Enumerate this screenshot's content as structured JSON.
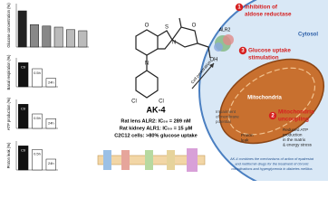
{
  "charts": [
    {
      "type": "bar",
      "y_label": "Glucose concentration (%)",
      "categories": [
        null,
        null,
        null,
        null,
        null,
        null
      ],
      "values": [
        100,
        62,
        58,
        55,
        48,
        45
      ],
      "colors": [
        "#222",
        "#888",
        "#888",
        "#bbb",
        "#bbb",
        "#bbb"
      ],
      "ylim": [
        0,
        120
      ]
    },
    {
      "type": "bar",
      "y_label": "Basal respiration (%)",
      "categories": [
        "Ctr",
        "0.5h",
        "24h"
      ],
      "values": [
        100,
        75,
        35
      ],
      "colors": [
        "#111",
        "#fff",
        "#fff"
      ],
      "ylim": [
        0,
        120
      ]
    },
    {
      "type": "bar",
      "y_label": "ATP production (%)",
      "categories": [
        "Ctr",
        "0.5h",
        "24h"
      ],
      "values": [
        100,
        60,
        40
      ],
      "colors": [
        "#111",
        "#fff",
        "#fff"
      ],
      "ylim": [
        0,
        120
      ]
    },
    {
      "type": "bar",
      "y_label": "Proton leak (%)",
      "categories": [
        "Ctr",
        "0.5h",
        "24h"
      ],
      "values": [
        100,
        85,
        45
      ],
      "colors": [
        "#111",
        "#fff",
        "#fff"
      ],
      "ylim": [
        0,
        120
      ]
    }
  ],
  "molecule": {
    "name": "AK-4",
    "atoms": [
      "O",
      "S",
      "N",
      "O",
      "OH",
      "N",
      "Cl",
      "Cl"
    ]
  },
  "activity": [
    "Rat lens ALR2: IC₅₀ = 289 nM",
    "Rat kidney ALR1: IC₅₀ = 15 μM",
    "C2C12 cells: >80% glucose uptake"
  ],
  "cell": {
    "penetration": "Cell penetration",
    "step1": {
      "number": "1",
      "lines": [
        "Inhibition of",
        "aldose reductase"
      ]
    },
    "enzyme": "ALR2",
    "compartment": "Cytosol",
    "step3": {
      "number": "3",
      "lines": [
        "Glucose uptake",
        "stimulation"
      ]
    },
    "membrane": [
      "Impairment",
      "of membrane",
      "potential"
    ],
    "organelle": "Mitochondria",
    "step2": {
      "number": "2",
      "lines": [
        "Mitochondria",
        "uncoupling"
      ]
    },
    "atp": [
      "Reduced ATP",
      "production",
      "in the matrix",
      "& energy stress"
    ],
    "leak": [
      "Proton",
      "leak"
    ],
    "summary": [
      "AK-4 combines the mechanisms of action of epalrestat",
      "and metformin drugs for the treatment of chronic",
      "complications and hyperglycemia in diabetes mellitus"
    ]
  }
}
